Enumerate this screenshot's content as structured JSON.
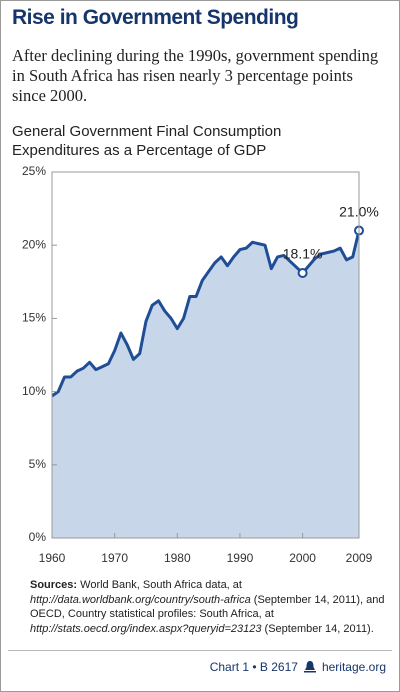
{
  "header": {
    "title": "Rise in Government Spending",
    "subtitle": "After declining during the 1990s, government spending in South Africa has risen nearly 3 percentage points since 2000."
  },
  "chart_data": {
    "type": "area",
    "title": "General Government Final Consumption Expenditures as a Percentage of GDP",
    "x": [
      1960,
      1961,
      1962,
      1963,
      1964,
      1965,
      1966,
      1967,
      1968,
      1969,
      1970,
      1971,
      1972,
      1973,
      1974,
      1975,
      1976,
      1977,
      1978,
      1979,
      1980,
      1981,
      1982,
      1983,
      1984,
      1985,
      1986,
      1987,
      1988,
      1989,
      1990,
      1991,
      1992,
      1993,
      1994,
      1995,
      1996,
      1997,
      1998,
      1999,
      2000,
      2001,
      2002,
      2003,
      2004,
      2005,
      2006,
      2007,
      2008,
      2009
    ],
    "values": [
      9.7,
      10.0,
      11.0,
      11.0,
      11.4,
      11.6,
      12.0,
      11.5,
      11.7,
      11.9,
      12.8,
      14.0,
      13.2,
      12.2,
      12.6,
      14.8,
      15.9,
      16.2,
      15.5,
      15.0,
      14.3,
      15.0,
      16.5,
      16.5,
      17.6,
      18.2,
      18.8,
      19.2,
      18.6,
      19.2,
      19.7,
      19.8,
      20.2,
      20.1,
      20.0,
      18.4,
      19.2,
      19.3,
      18.9,
      18.5,
      18.1,
      18.6,
      19.1,
      19.4,
      19.5,
      19.6,
      19.8,
      19.0,
      19.2,
      21.0
    ],
    "value_labels": [
      null,
      null,
      null,
      null,
      null,
      null,
      null,
      null,
      null,
      null,
      null,
      null,
      null,
      null,
      null,
      null,
      null,
      null,
      null,
      null,
      null,
      null,
      null,
      null,
      null,
      null,
      null,
      null,
      null,
      null,
      null,
      null,
      null,
      null,
      null,
      null,
      null,
      null,
      null,
      null,
      "18.1%",
      null,
      null,
      null,
      null,
      null,
      null,
      null,
      null,
      "21.0%"
    ],
    "line_color": "#1f4e96",
    "fill_color": "#c8d6ea",
    "xlim": [
      1960,
      2009
    ],
    "xticks": [
      1960,
      1970,
      1980,
      1990,
      2000,
      2009
    ],
    "ylim": [
      0,
      25
    ],
    "yticks": [
      {
        "value": 0,
        "label": "0%"
      },
      {
        "value": 5,
        "label": "5%"
      },
      {
        "value": 10,
        "label": "10%"
      },
      {
        "value": 15,
        "label": "15%"
      },
      {
        "value": 20,
        "label": "20%"
      },
      {
        "value": 25,
        "label": "25%"
      }
    ],
    "grid": false
  },
  "sources": {
    "label": "Sources:",
    "parts": [
      "World Bank, South Africa data, at",
      "http://data.worldbank.org/country/south-africa",
      "(September 14, 2011), and OECD, Country statistical profiles: South Africa, at",
      "http://stats.oecd.org/index.aspx?queryid=23123",
      "(September 14, 2011)."
    ]
  },
  "footer": {
    "chart": "Chart 1 • B 2617",
    "site": "heritage.org"
  }
}
